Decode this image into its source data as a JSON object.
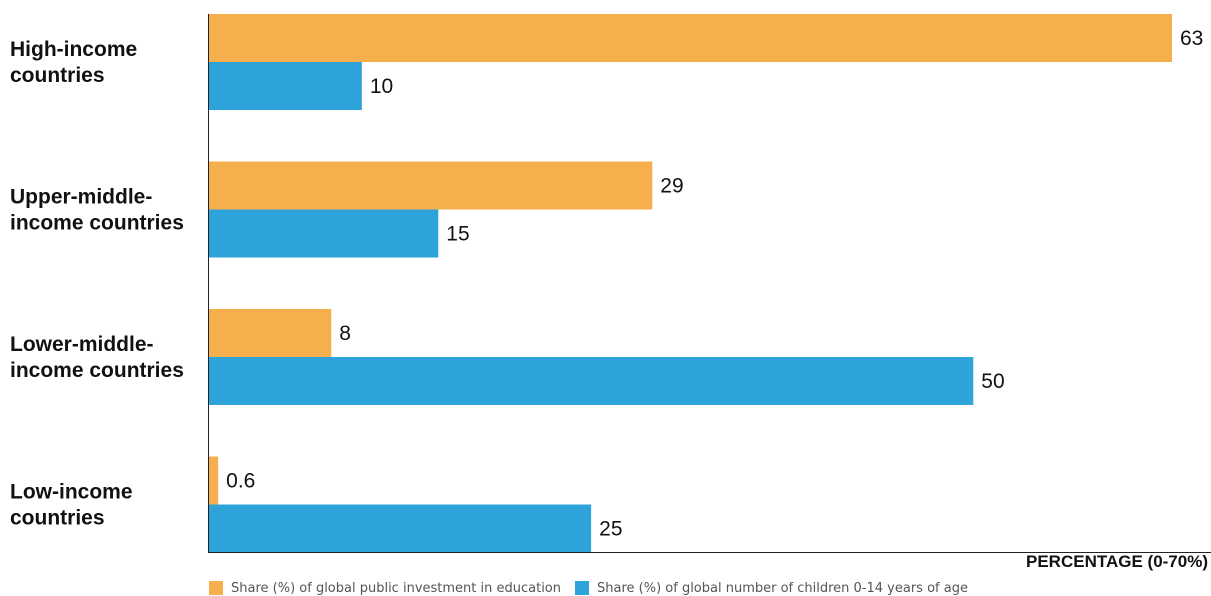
{
  "chart_data": {
    "type": "bar",
    "orientation": "horizontal",
    "categories": [
      [
        "High-income",
        "countries"
      ],
      [
        "Upper-middle-",
        "income countries"
      ],
      [
        "Lower-middle-",
        "income countries"
      ],
      [
        "Low-income",
        "countries"
      ]
    ],
    "series": [
      {
        "name": "Share (%) of global public investment in education",
        "color": "#F5AF4D",
        "values": [
          63,
          29,
          8,
          0.6
        ],
        "labels": [
          "63",
          "29",
          "8",
          "0.6"
        ]
      },
      {
        "name": "Share (%) of global number of children 0-14 years of age",
        "color": "#2EA3DA",
        "values": [
          10,
          15,
          50,
          25
        ],
        "labels": [
          "10",
          "15",
          "50",
          "25"
        ]
      }
    ],
    "xlabel": "PERCENTAGE (0-70%)",
    "xlim": [
      0,
      63
    ],
    "legend_position": "bottom",
    "grid": false
  }
}
